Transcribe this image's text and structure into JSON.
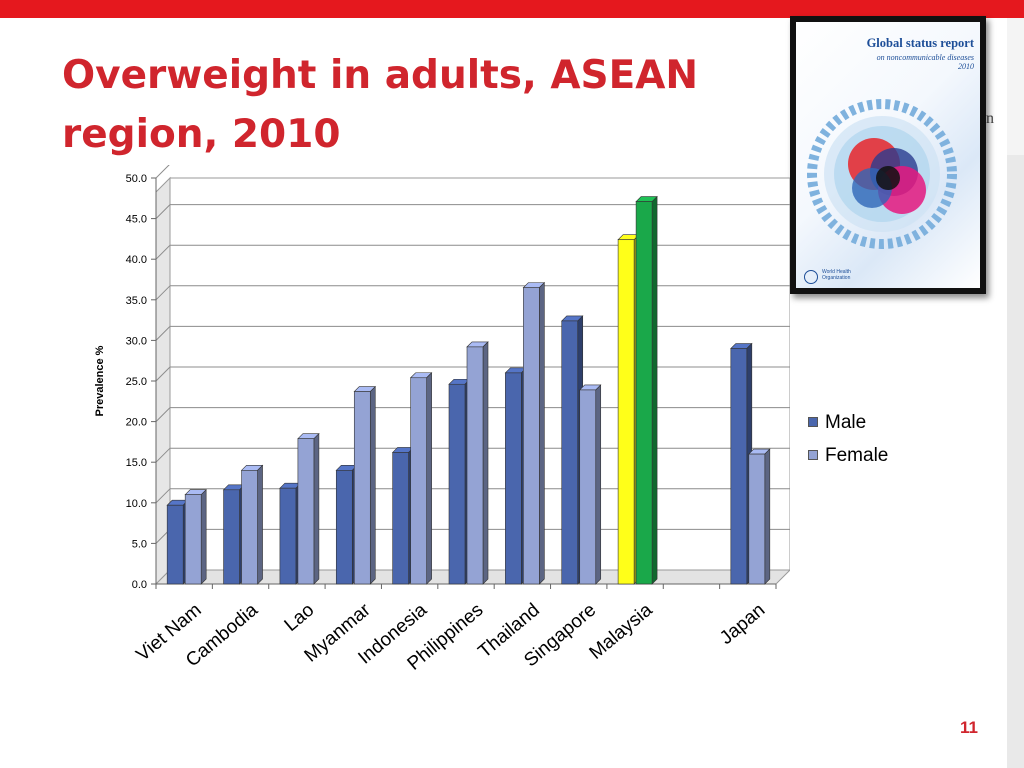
{
  "slide": {
    "title_line1": "Overweight in adults, ASEAN",
    "title_line2": "region, 2010",
    "slide_number": "11",
    "stray_text": "n",
    "colors": {
      "accent": "#e5181e",
      "title": "#d0252d"
    }
  },
  "report_cover": {
    "title": "Global status report",
    "subtitle_line1": "on noncommunicable diseases",
    "subtitle_line2": "2010",
    "publisher_line1": "World Health",
    "publisher_line2": "Organization",
    "logo_icon": "who-emblem-icon"
  },
  "chart_data": {
    "type": "bar",
    "ylabel": "Prevalence %",
    "xlabel": "",
    "ylim": [
      0,
      50
    ],
    "yticks": [
      "0.0",
      "5.0",
      "10.0",
      "15.0",
      "20.0",
      "25.0",
      "30.0",
      "35.0",
      "40.0",
      "45.0",
      "50.0"
    ],
    "categories": [
      "Viet Nam",
      "Cambodia",
      "Lao",
      "Myanmar",
      "Indonesia",
      "Philippines",
      "Thailand",
      "Singapore",
      "Malaysia",
      "",
      "Japan"
    ],
    "series": [
      {
        "name": "Male",
        "color": "#4a66ad",
        "values": [
          9.7,
          11.6,
          11.8,
          14.0,
          16.2,
          24.6,
          26.0,
          32.4,
          42.4,
          null,
          29.0
        ]
      },
      {
        "name": "Female",
        "color": "#94a3d4",
        "values": [
          11.0,
          14.0,
          17.9,
          23.7,
          25.4,
          29.2,
          36.5,
          23.9,
          47.1,
          null,
          16.0
        ]
      }
    ],
    "highlight": {
      "category": "Malaysia",
      "male_color": "#ffff19",
      "female_color": "#1aa84a"
    },
    "grid": true,
    "legend": "right"
  }
}
